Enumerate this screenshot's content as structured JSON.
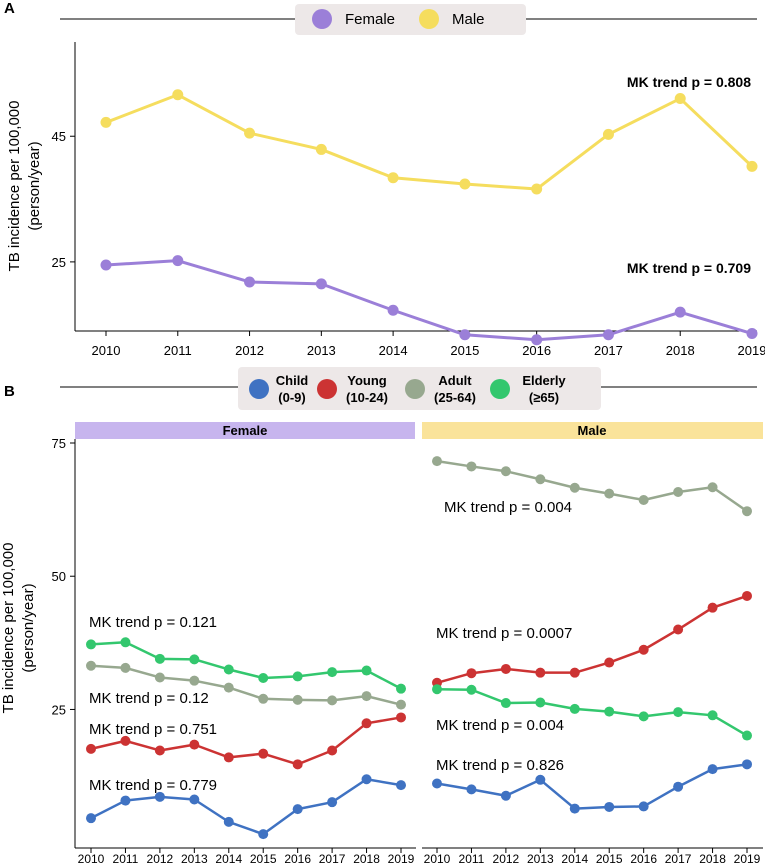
{
  "chart_data": [
    {
      "type": "line",
      "panel": "A",
      "title": "",
      "xlabel": "",
      "ylabel": "TB incidence per 100,000 (person/year)",
      "ylabel_lines": [
        "TB incidence per 100,000",
        "(person/year)"
      ],
      "x": [
        "2010",
        "2011",
        "2012",
        "2013",
        "2014",
        "2015",
        "2016",
        "2017",
        "2018",
        "2019"
      ],
      "yticks": [
        25,
        45
      ],
      "ylim": [
        14,
        60
      ],
      "legend": [
        "Female",
        "Male"
      ],
      "series": [
        {
          "name": "Female",
          "color": "#9b7fd8",
          "values": [
            24.5,
            25.2,
            21.8,
            21.5,
            17.3,
            13.4,
            12.6,
            13.4,
            17.0,
            13.6
          ],
          "annotation": "MK trend p = 0.709"
        },
        {
          "name": "Male",
          "color": "#f5dd5e",
          "values": [
            47.2,
            51.6,
            45.5,
            42.9,
            38.4,
            37.4,
            36.6,
            45.3,
            51.0,
            40.2
          ],
          "annotation": "MK trend p = 0.808"
        }
      ]
    },
    {
      "type": "line",
      "panel": "B",
      "title": "",
      "xlabel": "",
      "ylabel": "TB incidence per 100,000 (person/year)",
      "ylabel_lines": [
        "TB incidence per 100,000",
        "(person/year)"
      ],
      "x": [
        "2010",
        "2011",
        "2012",
        "2013",
        "2014",
        "2015",
        "2016",
        "2017",
        "2018",
        "2019"
      ],
      "yticks": [
        25,
        50,
        75
      ],
      "ylim": [
        -1,
        75
      ],
      "legend": [
        {
          "name": "Child",
          "range": "(0-9)",
          "color": "#3f72c2"
        },
        {
          "name": "Young",
          "range": "(10-24)",
          "color": "#cc3333"
        },
        {
          "name": "Adult",
          "range": "(25-64)",
          "color": "#97a88f"
        },
        {
          "name": "Elderly",
          "range": "(≥65)",
          "color": "#33c76e"
        }
      ],
      "facets": [
        {
          "name": "Female",
          "strip_color": "#c7b5ee",
          "series": [
            {
              "name": "Child",
              "values": [
                4.6,
                7.9,
                8.6,
                8.1,
                3.9,
                1.6,
                6.3,
                7.6,
                11.9,
                10.8
              ],
              "annotation": "MK trend p = 0.779"
            },
            {
              "name": "Young",
              "values": [
                17.6,
                19.1,
                17.3,
                18.4,
                16.0,
                16.7,
                14.7,
                17.3,
                22.4,
                23.5
              ],
              "annotation": "MK trend p = 0.751"
            },
            {
              "name": "Adult",
              "values": [
                33.2,
                32.8,
                31.0,
                30.4,
                29.1,
                27.0,
                26.8,
                26.7,
                27.5,
                25.9
              ],
              "annotation": "MK trend p = 0.12"
            },
            {
              "name": "Elderly",
              "values": [
                37.2,
                37.6,
                34.5,
                34.4,
                32.5,
                30.9,
                31.2,
                32.0,
                32.3,
                28.9
              ],
              "annotation": "MK trend p = 0.121"
            }
          ]
        },
        {
          "name": "Male",
          "strip_color": "#fae39a",
          "series": [
            {
              "name": "Child",
              "values": [
                11.1,
                10.0,
                8.8,
                11.8,
                6.4,
                6.7,
                6.8,
                10.5,
                13.8,
                14.7
              ],
              "annotation": "MK trend p = 0.826"
            },
            {
              "name": "Young",
              "values": [
                30.0,
                31.8,
                32.6,
                31.9,
                31.9,
                33.8,
                36.2,
                40.0,
                44.1,
                46.3
              ],
              "annotation": "MK trend p = 0.0007"
            },
            {
              "name": "Adult",
              "values": [
                71.6,
                70.6,
                69.7,
                68.2,
                66.6,
                65.5,
                64.3,
                65.8,
                66.7,
                62.2
              ],
              "annotation": "MK trend p = 0.004"
            },
            {
              "name": "Elderly",
              "values": [
                28.8,
                28.7,
                26.2,
                26.3,
                25.1,
                24.6,
                23.7,
                24.5,
                23.9,
                20.1
              ],
              "annotation": "MK trend p = 0.004"
            }
          ]
        }
      ]
    }
  ]
}
